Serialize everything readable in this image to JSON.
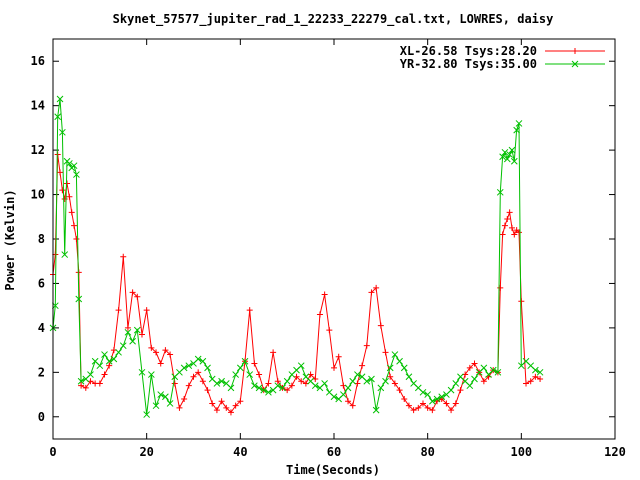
{
  "chart_data": {
    "type": "line",
    "title": "Skynet_57577_jupiter_rad_1_22233_22279_cal.txt, LOWRES, daisy",
    "xlabel": "Time(Seconds)",
    "ylabel": "Power (Kelvin)",
    "xlim": [
      0,
      120
    ],
    "ylim": [
      -1,
      17
    ],
    "x_ticks": [
      "0",
      "20",
      "40",
      "60",
      "80",
      "100",
      "120"
    ],
    "y_ticks": [
      "0",
      "2",
      "4",
      "6",
      "8",
      "10",
      "12",
      "14",
      "16"
    ],
    "grid": false,
    "legend_position": "top-right",
    "series": [
      {
        "name": "XL-26.58 Tsys:28.20",
        "color": "#ff0000",
        "marker": "plus",
        "x": [
          0,
          0.5,
          1,
          1.5,
          2,
          2.5,
          3,
          3.5,
          4,
          4.5,
          5,
          5.5,
          6,
          7,
          8,
          9,
          10,
          11,
          12,
          13,
          14,
          15,
          16,
          17,
          18,
          19,
          20,
          21,
          22,
          23,
          24,
          25,
          26,
          27,
          28,
          29,
          30,
          31,
          32,
          33,
          34,
          35,
          36,
          37,
          38,
          39,
          40,
          41,
          42,
          43,
          44,
          45,
          46,
          47,
          48,
          49,
          50,
          51,
          52,
          53,
          54,
          55,
          56,
          57,
          58,
          59,
          60,
          61,
          62,
          63,
          64,
          65,
          66,
          67,
          68,
          69,
          70,
          71,
          72,
          73,
          74,
          75,
          76,
          77,
          78,
          79,
          80,
          81,
          82,
          83,
          84,
          85,
          86,
          87,
          88,
          89,
          90,
          91,
          92,
          93,
          94,
          95,
          95.5,
          96,
          96.5,
          97,
          97.5,
          98,
          98.5,
          99,
          99.5,
          100,
          101,
          102,
          103,
          104
        ],
        "y": [
          6.4,
          7.3,
          11.8,
          11.0,
          10.2,
          9.8,
          10.5,
          9.9,
          9.2,
          8.6,
          8.0,
          6.5,
          1.4,
          1.3,
          1.6,
          1.5,
          1.5,
          1.9,
          2.3,
          3.0,
          4.8,
          7.2,
          4.0,
          5.6,
          5.4,
          3.7,
          4.8,
          3.1,
          2.9,
          2.4,
          3.0,
          2.8,
          1.5,
          0.4,
          0.8,
          1.4,
          1.8,
          2.0,
          1.6,
          1.2,
          0.6,
          0.3,
          0.7,
          0.4,
          0.2,
          0.5,
          0.7,
          2.5,
          4.8,
          2.4,
          1.9,
          1.2,
          1.5,
          2.9,
          1.6,
          1.3,
          1.2,
          1.4,
          1.8,
          1.6,
          1.5,
          1.9,
          1.7,
          4.6,
          5.5,
          3.9,
          2.2,
          2.7,
          1.4,
          0.7,
          0.5,
          1.5,
          2.3,
          3.2,
          5.6,
          5.8,
          4.1,
          2.9,
          1.8,
          1.5,
          1.2,
          0.8,
          0.5,
          0.3,
          0.4,
          0.6,
          0.4,
          0.3,
          0.7,
          0.8,
          0.6,
          0.3,
          0.6,
          1.2,
          1.9,
          2.2,
          2.4,
          2.0,
          1.6,
          1.8,
          2.1,
          2.0,
          5.8,
          8.2,
          8.6,
          8.9,
          9.2,
          8.5,
          8.2,
          8.4,
          8.3,
          5.2,
          1.5,
          1.6,
          1.8,
          1.7
        ]
      },
      {
        "name": "YR-32.80 Tsys:35.00",
        "color": "#00c000",
        "marker": "cross",
        "x": [
          0,
          0.5,
          1,
          1.5,
          2,
          2.5,
          3,
          3.5,
          4,
          4.5,
          5,
          5.5,
          6,
          7,
          8,
          9,
          10,
          11,
          12,
          13,
          14,
          15,
          16,
          17,
          18,
          19,
          20,
          21,
          22,
          23,
          24,
          25,
          26,
          27,
          28,
          29,
          30,
          31,
          32,
          33,
          34,
          35,
          36,
          37,
          38,
          39,
          40,
          41,
          42,
          43,
          44,
          45,
          46,
          47,
          48,
          49,
          50,
          51,
          52,
          53,
          54,
          55,
          56,
          57,
          58,
          59,
          60,
          61,
          62,
          63,
          64,
          65,
          66,
          67,
          68,
          69,
          70,
          71,
          72,
          73,
          74,
          75,
          76,
          77,
          78,
          79,
          80,
          81,
          82,
          83,
          84,
          85,
          86,
          87,
          88,
          89,
          90,
          91,
          92,
          93,
          94,
          95,
          95.5,
          96,
          96.5,
          97,
          97.5,
          98,
          98.5,
          99,
          99.5,
          100,
          101,
          102,
          103,
          104
        ],
        "y": [
          4.0,
          5.0,
          13.5,
          14.3,
          12.8,
          7.3,
          11.5,
          11.4,
          11.2,
          11.3,
          10.9,
          5.3,
          1.6,
          1.7,
          1.9,
          2.5,
          2.3,
          2.8,
          2.5,
          2.6,
          2.9,
          3.2,
          3.8,
          3.4,
          3.9,
          2.0,
          0.1,
          1.9,
          0.5,
          1.0,
          0.9,
          0.6,
          1.8,
          2.0,
          2.2,
          2.3,
          2.4,
          2.6,
          2.5,
          2.2,
          1.7,
          1.5,
          1.6,
          1.5,
          1.3,
          1.9,
          2.2,
          2.5,
          1.9,
          1.4,
          1.3,
          1.2,
          1.1,
          1.2,
          1.4,
          1.3,
          1.6,
          1.9,
          2.1,
          2.3,
          1.8,
          1.6,
          1.4,
          1.3,
          1.5,
          1.1,
          0.9,
          0.8,
          1.0,
          1.3,
          1.6,
          1.9,
          1.8,
          1.6,
          1.7,
          0.3,
          1.3,
          1.6,
          2.2,
          2.8,
          2.5,
          2.2,
          1.8,
          1.5,
          1.3,
          1.1,
          1.0,
          0.7,
          0.8,
          0.9,
          1.0,
          1.2,
          1.5,
          1.8,
          1.6,
          1.4,
          1.7,
          2.0,
          2.2,
          1.9,
          2.1,
          2.0,
          10.1,
          11.7,
          11.9,
          11.6,
          11.8,
          12.0,
          11.5,
          12.9,
          13.2,
          2.3,
          2.5,
          2.3,
          2.1,
          2.0
        ]
      }
    ]
  }
}
